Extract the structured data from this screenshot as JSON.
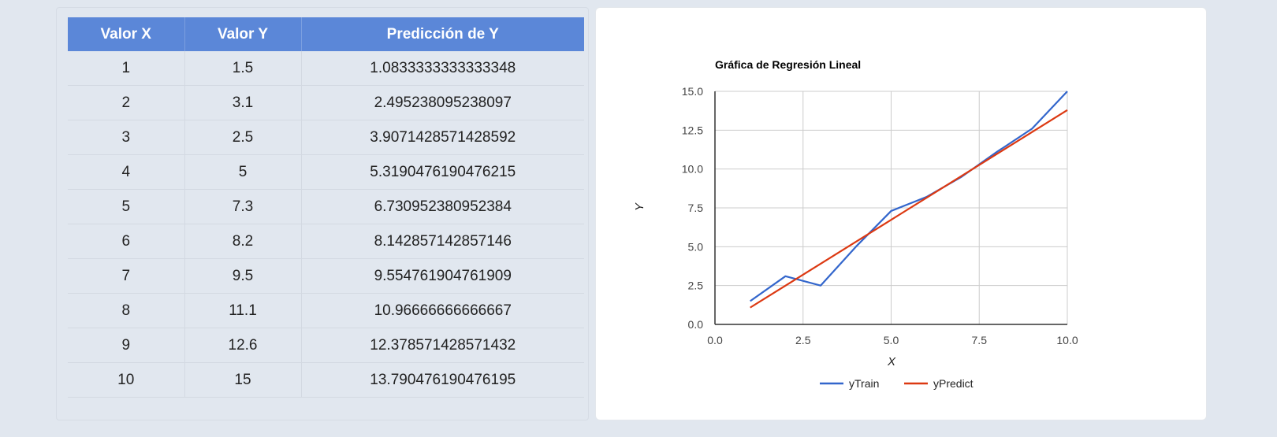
{
  "table": {
    "headers": [
      "Valor X",
      "Valor Y",
      "Predicción de Y"
    ],
    "rows": [
      [
        "1",
        "1.5",
        "1.0833333333333348"
      ],
      [
        "2",
        "3.1",
        "2.495238095238097"
      ],
      [
        "3",
        "2.5",
        "3.9071428571428592"
      ],
      [
        "4",
        "5",
        "5.3190476190476215"
      ],
      [
        "5",
        "7.3",
        "6.730952380952384"
      ],
      [
        "6",
        "8.2",
        "8.142857142857146"
      ],
      [
        "7",
        "9.5",
        "9.554761904761909"
      ],
      [
        "8",
        "11.1",
        "10.96666666666667"
      ],
      [
        "9",
        "12.6",
        "12.378571428571432"
      ],
      [
        "10",
        "15",
        "13.790476190476195"
      ]
    ]
  },
  "chart_data": {
    "type": "line",
    "title": "Gráfica de Regresión Lineal",
    "xlabel": "X",
    "ylabel": "Y",
    "xlim": [
      0,
      10
    ],
    "ylim": [
      0,
      15
    ],
    "x_ticks": [
      "0.0",
      "2.5",
      "5.0",
      "7.5",
      "10.0"
    ],
    "y_ticks": [
      "0.0",
      "2.5",
      "5.0",
      "7.5",
      "10.0",
      "12.5",
      "15.0"
    ],
    "grid": true,
    "legend_position": "bottom",
    "x": [
      1,
      2,
      3,
      4,
      5,
      6,
      7,
      8,
      9,
      10
    ],
    "series": [
      {
        "name": "yTrain",
        "color": "#3366cc",
        "values": [
          1.5,
          3.1,
          2.5,
          5,
          7.3,
          8.2,
          9.5,
          11.1,
          12.6,
          15
        ]
      },
      {
        "name": "yPredict",
        "color": "#dc3912",
        "values": [
          1.0833333333333348,
          2.495238095238097,
          3.9071428571428592,
          5.3190476190476215,
          6.730952380952384,
          8.142857142857146,
          9.554761904761909,
          10.96666666666667,
          12.378571428571432,
          13.790476190476195
        ]
      }
    ]
  }
}
